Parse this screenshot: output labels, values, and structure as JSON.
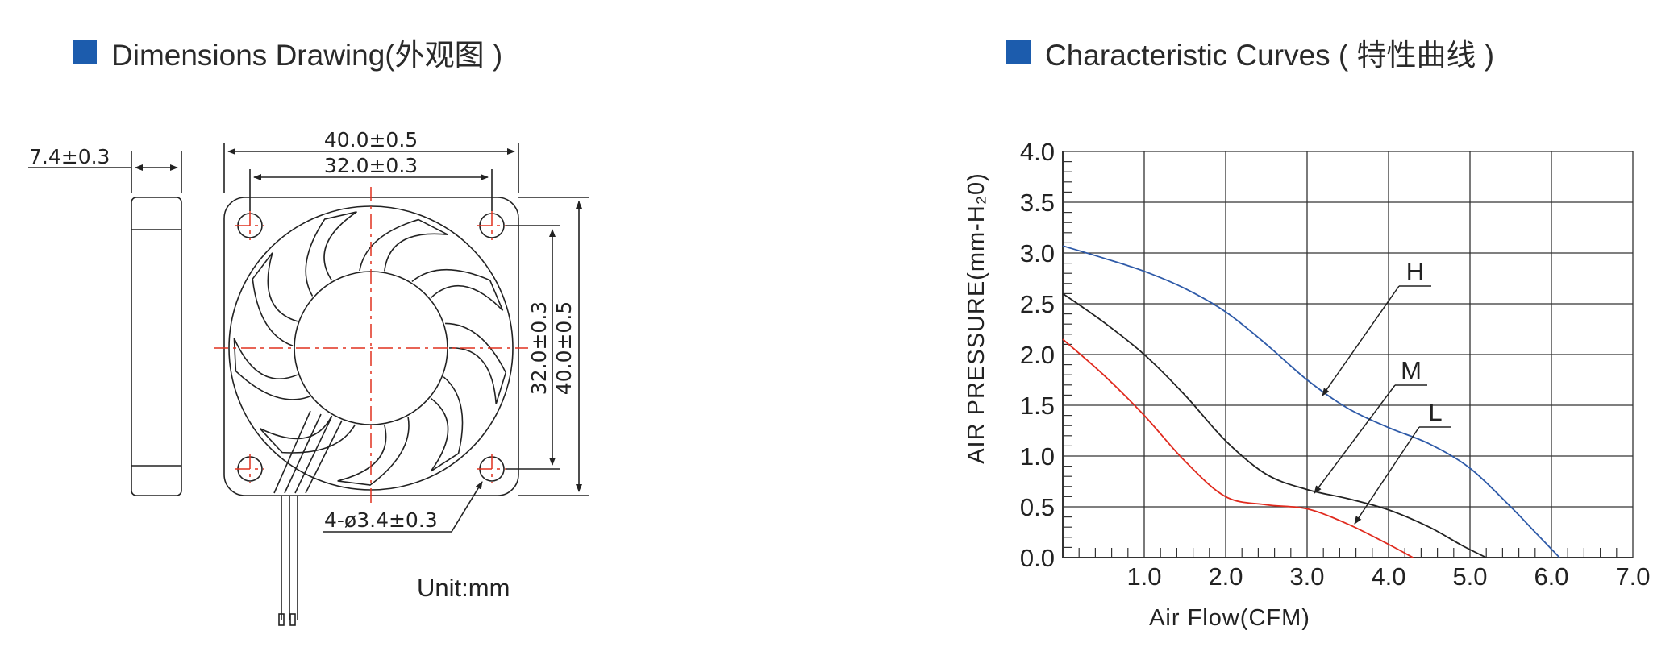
{
  "titles": {
    "left": "Dimensions Drawing(外观图 )",
    "right": "Characteristic Curves ( 特性曲线 )"
  },
  "drawing": {
    "thickness": "7.4±0.3",
    "outer_width": "40.0±0.5",
    "hole_spacing_h": "32.0±0.3",
    "hole_spacing_v": "32.0±0.3",
    "outer_height": "40.0±0.5",
    "holes": "4-ø3.4±0.3",
    "unit": "Unit:mm"
  },
  "colors": {
    "accent": "#1c5cad",
    "H": "#2e5aa8",
    "M": "#222222",
    "L": "#e02a1e",
    "center_lines": "#e0301e"
  },
  "chart_data": {
    "type": "line",
    "xlabel": "Air Flow(CFM)",
    "ylabel": "AIR PRESSURE(mm-H₂0)",
    "xlim": [
      0,
      7.0
    ],
    "ylim": [
      0,
      4.0
    ],
    "x_ticks": [
      "1.0",
      "2.0",
      "3.0",
      "4.0",
      "5.0",
      "6.0",
      "7.0"
    ],
    "y_ticks": [
      "0.0",
      "0.5",
      "1.0",
      "1.5",
      "2.0",
      "2.5",
      "3.0",
      "3.5",
      "4.0"
    ],
    "grid": true,
    "series": [
      {
        "name": "H",
        "color": "#2e5aa8",
        "x": [
          0,
          0.5,
          1.0,
          1.5,
          2.0,
          2.5,
          3.0,
          3.5,
          4.0,
          4.5,
          5.0,
          5.5,
          5.8,
          6.1
        ],
        "y": [
          3.07,
          2.95,
          2.82,
          2.65,
          2.42,
          2.1,
          1.75,
          1.47,
          1.28,
          1.12,
          0.88,
          0.5,
          0.25,
          0.0
        ]
      },
      {
        "name": "M",
        "color": "#222222",
        "x": [
          0,
          0.5,
          1.0,
          1.5,
          2.0,
          2.5,
          3.0,
          3.5,
          4.0,
          4.5,
          4.9,
          5.2
        ],
        "y": [
          2.6,
          2.32,
          2.0,
          1.6,
          1.15,
          0.82,
          0.67,
          0.58,
          0.47,
          0.3,
          0.12,
          0.0
        ]
      },
      {
        "name": "L",
        "color": "#e02a1e",
        "x": [
          0,
          0.5,
          1.0,
          1.5,
          2.0,
          2.5,
          3.0,
          3.5,
          4.0,
          4.3
        ],
        "y": [
          2.15,
          1.8,
          1.4,
          0.95,
          0.6,
          0.52,
          0.48,
          0.33,
          0.13,
          0.0
        ]
      }
    ]
  }
}
